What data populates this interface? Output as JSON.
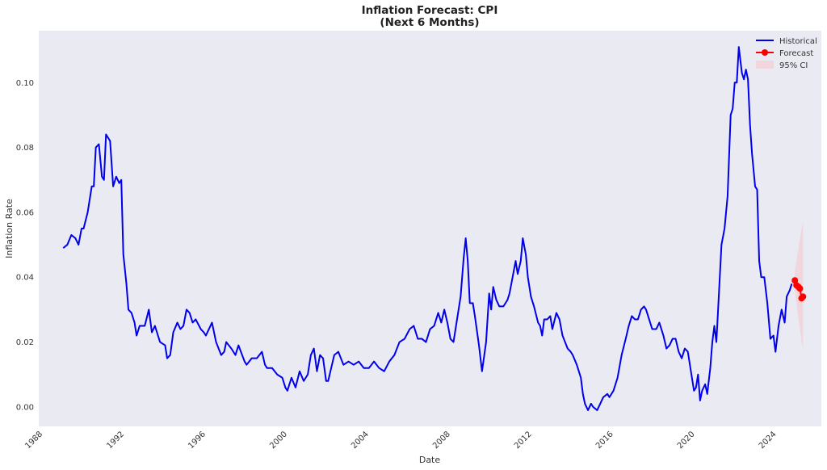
{
  "chart_data": {
    "type": "line",
    "title": "Inflation Forecast: CPI",
    "subtitle": "(Next 6 Months)",
    "xlabel": "Date",
    "ylabel": "Inflation Rate",
    "xlim": [
      1987.8,
      2026.2
    ],
    "ylim": [
      -0.006,
      0.116
    ],
    "x_ticks": [
      1988,
      1992,
      1996,
      2000,
      2004,
      2008,
      2012,
      2016,
      2020,
      2024
    ],
    "x_tick_labels": [
      "1988",
      "1992",
      "1996",
      "2000",
      "2004",
      "2008",
      "2012",
      "2016",
      "2020",
      "2024"
    ],
    "y_ticks": [
      0.0,
      0.02,
      0.04,
      0.06,
      0.08,
      0.1
    ],
    "y_tick_labels": [
      "0.00",
      "0.02",
      "0.04",
      "0.06",
      "0.08",
      "0.10"
    ],
    "grid": false,
    "legend_position": "top-right",
    "colors": {
      "plot_background": "#eaeaf2",
      "historical": "#0000ee",
      "forecast": "#ff0000",
      "ci": "#ffb3b3"
    },
    "series": [
      {
        "name": "Historical",
        "style": "line",
        "points": [
          [
            1989.0,
            0.049
          ],
          [
            1989.2,
            0.05
          ],
          [
            1989.4,
            0.053
          ],
          [
            1989.6,
            0.052
          ],
          [
            1989.75,
            0.05
          ],
          [
            1989.9,
            0.055
          ],
          [
            1990.0,
            0.055
          ],
          [
            1990.2,
            0.06
          ],
          [
            1990.4,
            0.068
          ],
          [
            1990.5,
            0.068
          ],
          [
            1990.6,
            0.08
          ],
          [
            1990.75,
            0.081
          ],
          [
            1990.9,
            0.071
          ],
          [
            1991.0,
            0.07
          ],
          [
            1991.1,
            0.084
          ],
          [
            1991.2,
            0.083
          ],
          [
            1991.3,
            0.082
          ],
          [
            1991.45,
            0.068
          ],
          [
            1991.6,
            0.071
          ],
          [
            1991.75,
            0.069
          ],
          [
            1991.85,
            0.07
          ],
          [
            1991.95,
            0.047
          ],
          [
            1992.1,
            0.038
          ],
          [
            1992.2,
            0.03
          ],
          [
            1992.35,
            0.029
          ],
          [
            1992.5,
            0.026
          ],
          [
            1992.6,
            0.022
          ],
          [
            1992.75,
            0.025
          ],
          [
            1993.0,
            0.025
          ],
          [
            1993.2,
            0.03
          ],
          [
            1993.35,
            0.023
          ],
          [
            1993.5,
            0.025
          ],
          [
            1993.75,
            0.02
          ],
          [
            1994.0,
            0.019
          ],
          [
            1994.1,
            0.015
          ],
          [
            1994.25,
            0.016
          ],
          [
            1994.4,
            0.023
          ],
          [
            1994.6,
            0.026
          ],
          [
            1994.75,
            0.024
          ],
          [
            1994.9,
            0.025
          ],
          [
            1995.05,
            0.03
          ],
          [
            1995.2,
            0.029
          ],
          [
            1995.35,
            0.026
          ],
          [
            1995.5,
            0.027
          ],
          [
            1995.75,
            0.024
          ],
          [
            1995.9,
            0.023
          ],
          [
            1996.0,
            0.022
          ],
          [
            1996.3,
            0.026
          ],
          [
            1996.5,
            0.02
          ],
          [
            1996.75,
            0.016
          ],
          [
            1996.9,
            0.017
          ],
          [
            1997.0,
            0.02
          ],
          [
            1997.25,
            0.018
          ],
          [
            1997.45,
            0.016
          ],
          [
            1997.6,
            0.019
          ],
          [
            1997.9,
            0.014
          ],
          [
            1998.0,
            0.013
          ],
          [
            1998.25,
            0.015
          ],
          [
            1998.5,
            0.015
          ],
          [
            1998.75,
            0.017
          ],
          [
            1998.9,
            0.013
          ],
          [
            1999.0,
            0.012
          ],
          [
            1999.25,
            0.012
          ],
          [
            1999.5,
            0.01
          ],
          [
            1999.75,
            0.009
          ],
          [
            1999.9,
            0.006
          ],
          [
            2000.0,
            0.005
          ],
          [
            2000.2,
            0.009
          ],
          [
            2000.4,
            0.006
          ],
          [
            2000.6,
            0.011
          ],
          [
            2000.8,
            0.008
          ],
          [
            2000.9,
            0.009
          ],
          [
            2001.0,
            0.01
          ],
          [
            2001.15,
            0.016
          ],
          [
            2001.3,
            0.018
          ],
          [
            2001.45,
            0.011
          ],
          [
            2001.6,
            0.016
          ],
          [
            2001.75,
            0.015
          ],
          [
            2001.9,
            0.008
          ],
          [
            2002.0,
            0.008
          ],
          [
            2002.15,
            0.012
          ],
          [
            2002.3,
            0.016
          ],
          [
            2002.5,
            0.017
          ],
          [
            2002.75,
            0.013
          ],
          [
            2003.0,
            0.014
          ],
          [
            2003.25,
            0.013
          ],
          [
            2003.5,
            0.014
          ],
          [
            2003.75,
            0.012
          ],
          [
            2004.0,
            0.012
          ],
          [
            2004.25,
            0.014
          ],
          [
            2004.5,
            0.012
          ],
          [
            2004.75,
            0.011
          ],
          [
            2005.0,
            0.014
          ],
          [
            2005.25,
            0.016
          ],
          [
            2005.5,
            0.02
          ],
          [
            2005.75,
            0.021
          ],
          [
            2006.0,
            0.024
          ],
          [
            2006.2,
            0.025
          ],
          [
            2006.4,
            0.021
          ],
          [
            2006.6,
            0.021
          ],
          [
            2006.8,
            0.02
          ],
          [
            2007.0,
            0.024
          ],
          [
            2007.2,
            0.025
          ],
          [
            2007.4,
            0.029
          ],
          [
            2007.55,
            0.026
          ],
          [
            2007.7,
            0.03
          ],
          [
            2007.85,
            0.026
          ],
          [
            2008.0,
            0.021
          ],
          [
            2008.15,
            0.02
          ],
          [
            2008.3,
            0.026
          ],
          [
            2008.5,
            0.034
          ],
          [
            2008.65,
            0.046
          ],
          [
            2008.75,
            0.052
          ],
          [
            2008.85,
            0.045
          ],
          [
            2008.95,
            0.032
          ],
          [
            2009.1,
            0.032
          ],
          [
            2009.2,
            0.028
          ],
          [
            2009.4,
            0.019
          ],
          [
            2009.55,
            0.011
          ],
          [
            2009.75,
            0.02
          ],
          [
            2009.9,
            0.035
          ],
          [
            2010.0,
            0.03
          ],
          [
            2010.1,
            0.037
          ],
          [
            2010.25,
            0.033
          ],
          [
            2010.4,
            0.031
          ],
          [
            2010.6,
            0.031
          ],
          [
            2010.8,
            0.033
          ],
          [
            2010.9,
            0.035
          ],
          [
            2011.05,
            0.04
          ],
          [
            2011.2,
            0.045
          ],
          [
            2011.3,
            0.041
          ],
          [
            2011.45,
            0.045
          ],
          [
            2011.55,
            0.052
          ],
          [
            2011.7,
            0.047
          ],
          [
            2011.8,
            0.04
          ],
          [
            2011.95,
            0.034
          ],
          [
            2012.1,
            0.031
          ],
          [
            2012.3,
            0.026
          ],
          [
            2012.4,
            0.025
          ],
          [
            2012.5,
            0.022
          ],
          [
            2012.6,
            0.027
          ],
          [
            2012.75,
            0.027
          ],
          [
            2012.9,
            0.028
          ],
          [
            2013.0,
            0.024
          ],
          [
            2013.2,
            0.029
          ],
          [
            2013.35,
            0.027
          ],
          [
            2013.5,
            0.022
          ],
          [
            2013.75,
            0.018
          ],
          [
            2013.9,
            0.017
          ],
          [
            2014.0,
            0.016
          ],
          [
            2014.2,
            0.013
          ],
          [
            2014.4,
            0.009
          ],
          [
            2014.5,
            0.004
          ],
          [
            2014.6,
            0.001
          ],
          [
            2014.75,
            -0.001
          ],
          [
            2014.9,
            0.001
          ],
          [
            2015.0,
            0.0
          ],
          [
            2015.2,
            -0.001
          ],
          [
            2015.35,
            0.001
          ],
          [
            2015.5,
            0.003
          ],
          [
            2015.7,
            0.004
          ],
          [
            2015.8,
            0.003
          ],
          [
            2016.0,
            0.005
          ],
          [
            2016.2,
            0.009
          ],
          [
            2016.4,
            0.016
          ],
          [
            2016.6,
            0.021
          ],
          [
            2016.75,
            0.025
          ],
          [
            2016.9,
            0.028
          ],
          [
            2017.05,
            0.027
          ],
          [
            2017.2,
            0.027
          ],
          [
            2017.35,
            0.03
          ],
          [
            2017.5,
            0.031
          ],
          [
            2017.6,
            0.03
          ],
          [
            2017.75,
            0.027
          ],
          [
            2017.9,
            0.024
          ],
          [
            2018.1,
            0.024
          ],
          [
            2018.25,
            0.026
          ],
          [
            2018.45,
            0.022
          ],
          [
            2018.6,
            0.018
          ],
          [
            2018.75,
            0.019
          ],
          [
            2018.9,
            0.021
          ],
          [
            2019.05,
            0.021
          ],
          [
            2019.2,
            0.017
          ],
          [
            2019.35,
            0.015
          ],
          [
            2019.5,
            0.018
          ],
          [
            2019.65,
            0.017
          ],
          [
            2019.8,
            0.011
          ],
          [
            2019.95,
            0.005
          ],
          [
            2020.05,
            0.006
          ],
          [
            2020.15,
            0.01
          ],
          [
            2020.25,
            0.002
          ],
          [
            2020.35,
            0.005
          ],
          [
            2020.5,
            0.007
          ],
          [
            2020.6,
            0.004
          ],
          [
            2020.75,
            0.012
          ],
          [
            2020.85,
            0.02
          ],
          [
            2020.95,
            0.025
          ],
          [
            2021.05,
            0.02
          ],
          [
            2021.15,
            0.032
          ],
          [
            2021.3,
            0.05
          ],
          [
            2021.45,
            0.055
          ],
          [
            2021.6,
            0.065
          ],
          [
            2021.75,
            0.09
          ],
          [
            2021.85,
            0.092
          ],
          [
            2021.95,
            0.1
          ],
          [
            2022.05,
            0.1
          ],
          [
            2022.15,
            0.111
          ],
          [
            2022.3,
            0.103
          ],
          [
            2022.4,
            0.101
          ],
          [
            2022.5,
            0.104
          ],
          [
            2022.6,
            0.101
          ],
          [
            2022.7,
            0.087
          ],
          [
            2022.8,
            0.078
          ],
          [
            2022.95,
            0.068
          ],
          [
            2023.05,
            0.067
          ],
          [
            2023.15,
            0.045
          ],
          [
            2023.25,
            0.04
          ],
          [
            2023.4,
            0.04
          ],
          [
            2023.55,
            0.032
          ],
          [
            2023.7,
            0.021
          ],
          [
            2023.85,
            0.022
          ],
          [
            2023.95,
            0.017
          ],
          [
            2024.1,
            0.025
          ],
          [
            2024.25,
            0.03
          ],
          [
            2024.4,
            0.026
          ],
          [
            2024.5,
            0.034
          ],
          [
            2024.65,
            0.036
          ],
          [
            2024.75,
            0.038
          ]
        ]
      },
      {
        "name": "Forecast",
        "style": "line-markers",
        "points": [
          [
            2024.9,
            0.039
          ],
          [
            2024.98,
            0.0375
          ],
          [
            2025.08,
            0.037
          ],
          [
            2025.15,
            0.0365
          ],
          [
            2025.23,
            0.0335
          ],
          [
            2025.3,
            0.034
          ]
        ]
      },
      {
        "name": "95% CI",
        "style": "band",
        "points": [
          [
            2024.9,
            0.036,
            0.042
          ],
          [
            2024.98,
            0.032,
            0.045
          ],
          [
            2025.08,
            0.027,
            0.049
          ],
          [
            2025.15,
            0.024,
            0.052
          ],
          [
            2025.23,
            0.02,
            0.055
          ],
          [
            2025.3,
            0.018,
            0.057
          ]
        ]
      }
    ]
  }
}
